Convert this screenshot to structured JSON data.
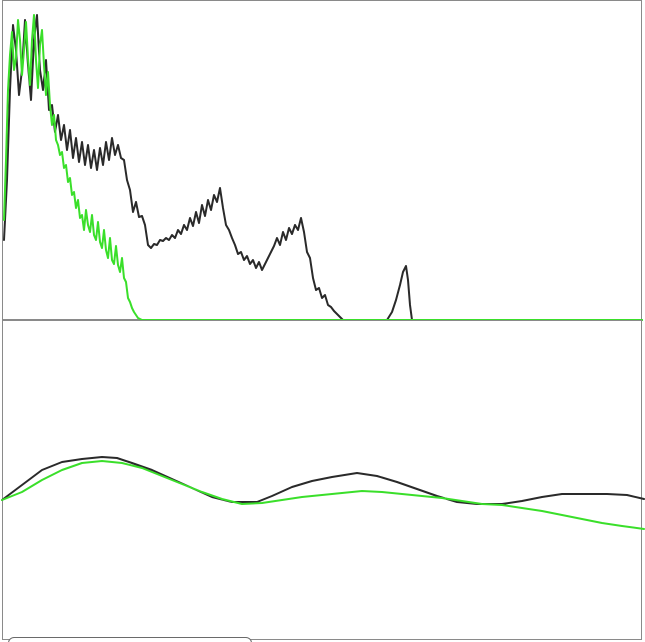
{
  "colors": {
    "series_a": "#2a2a2a",
    "series_b": "#3adf2a",
    "frame": "#8a8a8a"
  },
  "chart_data": [
    {
      "type": "line",
      "xlim": [
        0,
        640
      ],
      "ylim": [
        0,
        320
      ],
      "grid": false,
      "legend": "none",
      "series": [
        {
          "color": "#2a2a2a",
          "points": [
            [
              2,
              80
            ],
            [
              5,
              140
            ],
            [
              8,
              230
            ],
            [
              11,
              295
            ],
            [
              14,
              270
            ],
            [
              17,
              225
            ],
            [
              20,
              250
            ],
            [
              23,
              300
            ],
            [
              26,
              255
            ],
            [
              29,
              220
            ],
            [
              32,
              280
            ],
            [
              35,
              305
            ],
            [
              38,
              250
            ],
            [
              41,
              230
            ],
            [
              44,
              260
            ],
            [
              47,
              210
            ],
            [
              50,
              215
            ],
            [
              53,
              188
            ],
            [
              56,
              205
            ],
            [
              59,
              180
            ],
            [
              62,
              195
            ],
            [
              65,
              170
            ],
            [
              68,
              190
            ],
            [
              71,
              162
            ],
            [
              74,
              182
            ],
            [
              77,
              158
            ],
            [
              80,
              178
            ],
            [
              83,
              155
            ],
            [
              86,
              175
            ],
            [
              89,
              152
            ],
            [
              92,
              170
            ],
            [
              95,
              150
            ],
            [
              98,
              172
            ],
            [
              101,
              155
            ],
            [
              104,
              178
            ],
            [
              107,
              160
            ],
            [
              110,
              182
            ],
            [
              113,
              165
            ],
            [
              116,
              175
            ],
            [
              119,
              162
            ],
            [
              122,
              160
            ],
            [
              125,
              140
            ],
            [
              128,
              130
            ],
            [
              131,
              108
            ],
            [
              134,
              118
            ],
            [
              137,
              103
            ],
            [
              140,
              104
            ],
            [
              143,
              95
            ],
            [
              146,
              75
            ],
            [
              149,
              72
            ],
            [
              152,
              76
            ],
            [
              155,
              75
            ],
            [
              158,
              80
            ],
            [
              161,
              79
            ],
            [
              164,
              82
            ],
            [
              167,
              80
            ],
            [
              170,
              85
            ],
            [
              173,
              82
            ],
            [
              176,
              90
            ],
            [
              179,
              86
            ],
            [
              182,
              95
            ],
            [
              185,
              90
            ],
            [
              188,
              102
            ],
            [
              191,
              94
            ],
            [
              194,
              108
            ],
            [
              197,
              97
            ],
            [
              200,
              115
            ],
            [
              203,
              104
            ],
            [
              206,
              120
            ],
            [
              209,
              110
            ],
            [
              212,
              125
            ],
            [
              215,
              118
            ],
            [
              218,
              132
            ],
            [
              221,
              112
            ],
            [
              224,
              95
            ],
            [
              227,
              90
            ],
            [
              230,
              82
            ],
            [
              233,
              75
            ],
            [
              236,
              66
            ],
            [
              239,
              68
            ],
            [
              242,
              60
            ],
            [
              245,
              64
            ],
            [
              248,
              56
            ],
            [
              251,
              60
            ],
            [
              254,
              52
            ],
            [
              257,
              58
            ],
            [
              260,
              50
            ],
            [
              263,
              56
            ],
            [
              266,
              62
            ],
            [
              269,
              68
            ],
            [
              272,
              74
            ],
            [
              275,
              82
            ],
            [
              278,
              75
            ],
            [
              281,
              88
            ],
            [
              284,
              80
            ],
            [
              287,
              92
            ],
            [
              290,
              86
            ],
            [
              293,
              95
            ],
            [
              296,
              90
            ],
            [
              299,
              102
            ],
            [
              302,
              88
            ],
            [
              305,
              68
            ],
            [
              308,
              62
            ],
            [
              311,
              42
            ],
            [
              314,
              30
            ],
            [
              317,
              32
            ],
            [
              320,
              22
            ],
            [
              323,
              25
            ],
            [
              326,
              15
            ],
            [
              329,
              13
            ],
            [
              332,
              9
            ],
            [
              335,
              6
            ],
            [
              338,
              3
            ],
            [
              341,
              0
            ],
            [
              350,
              0
            ],
            [
              380,
              0
            ],
            [
              385,
              0
            ],
            [
              390,
              8
            ],
            [
              394,
              20
            ],
            [
              398,
              35
            ],
            [
              401,
              48
            ],
            [
              404,
              54
            ],
            [
              406,
              40
            ],
            [
              408,
              15
            ],
            [
              410,
              0
            ],
            [
              450,
              0
            ],
            [
              500,
              0
            ],
            [
              560,
              0
            ],
            [
              600,
              0
            ],
            [
              640,
              0
            ]
          ]
        },
        {
          "color": "#3adf2a",
          "points": [
            [
              2,
              100
            ],
            [
              4,
              160
            ],
            [
              6,
              230
            ],
            [
              8,
              265
            ],
            [
              10,
              288
            ],
            [
              12,
              250
            ],
            [
              14,
              262
            ],
            [
              16,
              300
            ],
            [
              18,
              280
            ],
            [
              20,
              245
            ],
            [
              22,
              270
            ],
            [
              24,
              298
            ],
            [
              26,
              262
            ],
            [
              28,
              235
            ],
            [
              30,
              280
            ],
            [
              32,
              305
            ],
            [
              34,
              260
            ],
            [
              36,
              232
            ],
            [
              38,
              275
            ],
            [
              40,
              290
            ],
            [
              42,
              255
            ],
            [
              44,
              225
            ],
            [
              46,
              248
            ],
            [
              48,
              215
            ],
            [
              50,
              195
            ],
            [
              52,
              205
            ],
            [
              54,
              180
            ],
            [
              56,
              175
            ],
            [
              58,
              165
            ],
            [
              60,
              168
            ],
            [
              62,
              152
            ],
            [
              64,
              155
            ],
            [
              66,
              138
            ],
            [
              68,
              142
            ],
            [
              70,
              125
            ],
            [
              72,
              128
            ],
            [
              74,
              112
            ],
            [
              76,
              120
            ],
            [
              78,
              102
            ],
            [
              80,
              105
            ],
            [
              82,
              90
            ],
            [
              84,
              110
            ],
            [
              86,
              95
            ],
            [
              88,
              88
            ],
            [
              90,
              105
            ],
            [
              92,
              85
            ],
            [
              94,
              80
            ],
            [
              96,
              98
            ],
            [
              98,
              78
            ],
            [
              100,
              72
            ],
            [
              102,
              90
            ],
            [
              104,
              70
            ],
            [
              106,
              62
            ],
            [
              108,
              82
            ],
            [
              110,
              60
            ],
            [
              112,
              56
            ],
            [
              114,
              74
            ],
            [
              116,
              55
            ],
            [
              118,
              48
            ],
            [
              120,
              62
            ],
            [
              122,
              42
            ],
            [
              124,
              38
            ],
            [
              126,
              22
            ],
            [
              128,
              18
            ],
            [
              130,
              12
            ],
            [
              132,
              8
            ],
            [
              134,
              5
            ],
            [
              136,
              2
            ],
            [
              140,
              0
            ],
            [
              180,
              0
            ],
            [
              300,
              0
            ],
            [
              400,
              0
            ],
            [
              500,
              0
            ],
            [
              640,
              0
            ]
          ]
        }
      ]
    },
    {
      "type": "line",
      "xlim": [
        0,
        640
      ],
      "ylim": [
        0,
        320
      ],
      "grid": false,
      "legend": "none",
      "series": [
        {
          "color": "#2a2a2a",
          "points": [
            [
              0,
              140
            ],
            [
              20,
              155
            ],
            [
              40,
              170
            ],
            [
              60,
              178
            ],
            [
              80,
              181
            ],
            [
              100,
              183
            ],
            [
              115,
              182
            ],
            [
              130,
              177
            ],
            [
              150,
              170
            ],
            [
              170,
              161
            ],
            [
              190,
              152
            ],
            [
              210,
              143
            ],
            [
              230,
              138
            ],
            [
              255,
              138
            ],
            [
              270,
              144
            ],
            [
              290,
              153
            ],
            [
              310,
              159
            ],
            [
              330,
              163
            ],
            [
              355,
              167
            ],
            [
              375,
              164
            ],
            [
              395,
              158
            ],
            [
              415,
              151
            ],
            [
              435,
              144
            ],
            [
              455,
              138
            ],
            [
              475,
              136
            ],
            [
              500,
              136
            ],
            [
              520,
              139
            ],
            [
              540,
              143
            ],
            [
              560,
              146
            ],
            [
              585,
              146
            ],
            [
              605,
              146
            ],
            [
              625,
              145
            ],
            [
              642,
              141
            ]
          ]
        },
        {
          "color": "#3adf2a",
          "points": [
            [
              0,
              140
            ],
            [
              20,
              148
            ],
            [
              40,
              160
            ],
            [
              60,
              170
            ],
            [
              80,
              177
            ],
            [
              100,
              179
            ],
            [
              120,
              177
            ],
            [
              140,
              172
            ],
            [
              160,
              164
            ],
            [
              180,
              156
            ],
            [
              200,
              148
            ],
            [
              220,
              141
            ],
            [
              240,
              136
            ],
            [
              260,
              137
            ],
            [
              280,
              140
            ],
            [
              300,
              143
            ],
            [
              320,
              145
            ],
            [
              340,
              147
            ],
            [
              360,
              149
            ],
            [
              380,
              148
            ],
            [
              400,
              146
            ],
            [
              420,
              144
            ],
            [
              440,
              142
            ],
            [
              460,
              139
            ],
            [
              480,
              136
            ],
            [
              500,
              135
            ],
            [
              520,
              132
            ],
            [
              540,
              129
            ],
            [
              560,
              125
            ],
            [
              580,
              121
            ],
            [
              600,
              117
            ],
            [
              620,
              114
            ],
            [
              642,
              111
            ]
          ]
        }
      ]
    }
  ]
}
